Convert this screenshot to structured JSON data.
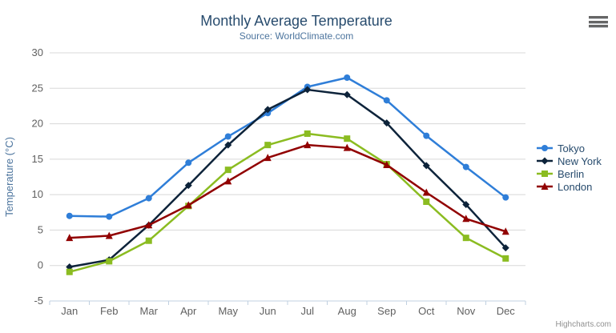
{
  "chart": {
    "title": "Monthly Average Temperature",
    "subtitle": "Source: WorldClimate.com",
    "credits": "Highcharts.com",
    "export_menu_icon": "hamburger"
  },
  "chart_data": {
    "type": "line",
    "title": "Monthly Average Temperature",
    "subtitle": "Source: WorldClimate.com",
    "categories": [
      "Jan",
      "Feb",
      "Mar",
      "Apr",
      "May",
      "Jun",
      "Jul",
      "Aug",
      "Sep",
      "Oct",
      "Nov",
      "Dec"
    ],
    "xlabel": "",
    "ylabel": "Temperature (°C)",
    "ylim": [
      -5,
      30
    ],
    "ytick_step": 5,
    "grid": true,
    "legend_position": "right",
    "series": [
      {
        "name": "Tokyo",
        "color": "#2f7ed8",
        "marker": "circle",
        "values": [
          7.0,
          6.9,
          9.5,
          14.5,
          18.2,
          21.5,
          25.2,
          26.5,
          23.3,
          18.3,
          13.9,
          9.6
        ]
      },
      {
        "name": "New York",
        "color": "#0d233a",
        "marker": "diamond",
        "values": [
          -0.2,
          0.8,
          5.7,
          11.3,
          17.0,
          22.0,
          24.8,
          24.1,
          20.1,
          14.1,
          8.6,
          2.5
        ]
      },
      {
        "name": "Berlin",
        "color": "#8bbc21",
        "marker": "square",
        "values": [
          -0.9,
          0.6,
          3.5,
          8.4,
          13.5,
          17.0,
          18.6,
          17.9,
          14.3,
          9.0,
          3.9,
          1.0
        ]
      },
      {
        "name": "London",
        "color": "#910000",
        "marker": "triangle",
        "values": [
          3.9,
          4.2,
          5.7,
          8.5,
          11.9,
          15.2,
          17.0,
          16.6,
          14.2,
          10.3,
          6.6,
          4.8
        ]
      }
    ]
  },
  "theme": {
    "title_color": "#274b6d",
    "subtitle_color": "#4d759e",
    "axis_label_color": "#606060",
    "axis_title_color": "#4d759e",
    "grid_color": "#d8d8d8",
    "axis_line_color": "#c0d0e0",
    "legend_text_color": "#274b6d",
    "credits_color": "#909090",
    "menu_icon_color": "#666666",
    "background": "#ffffff"
  }
}
